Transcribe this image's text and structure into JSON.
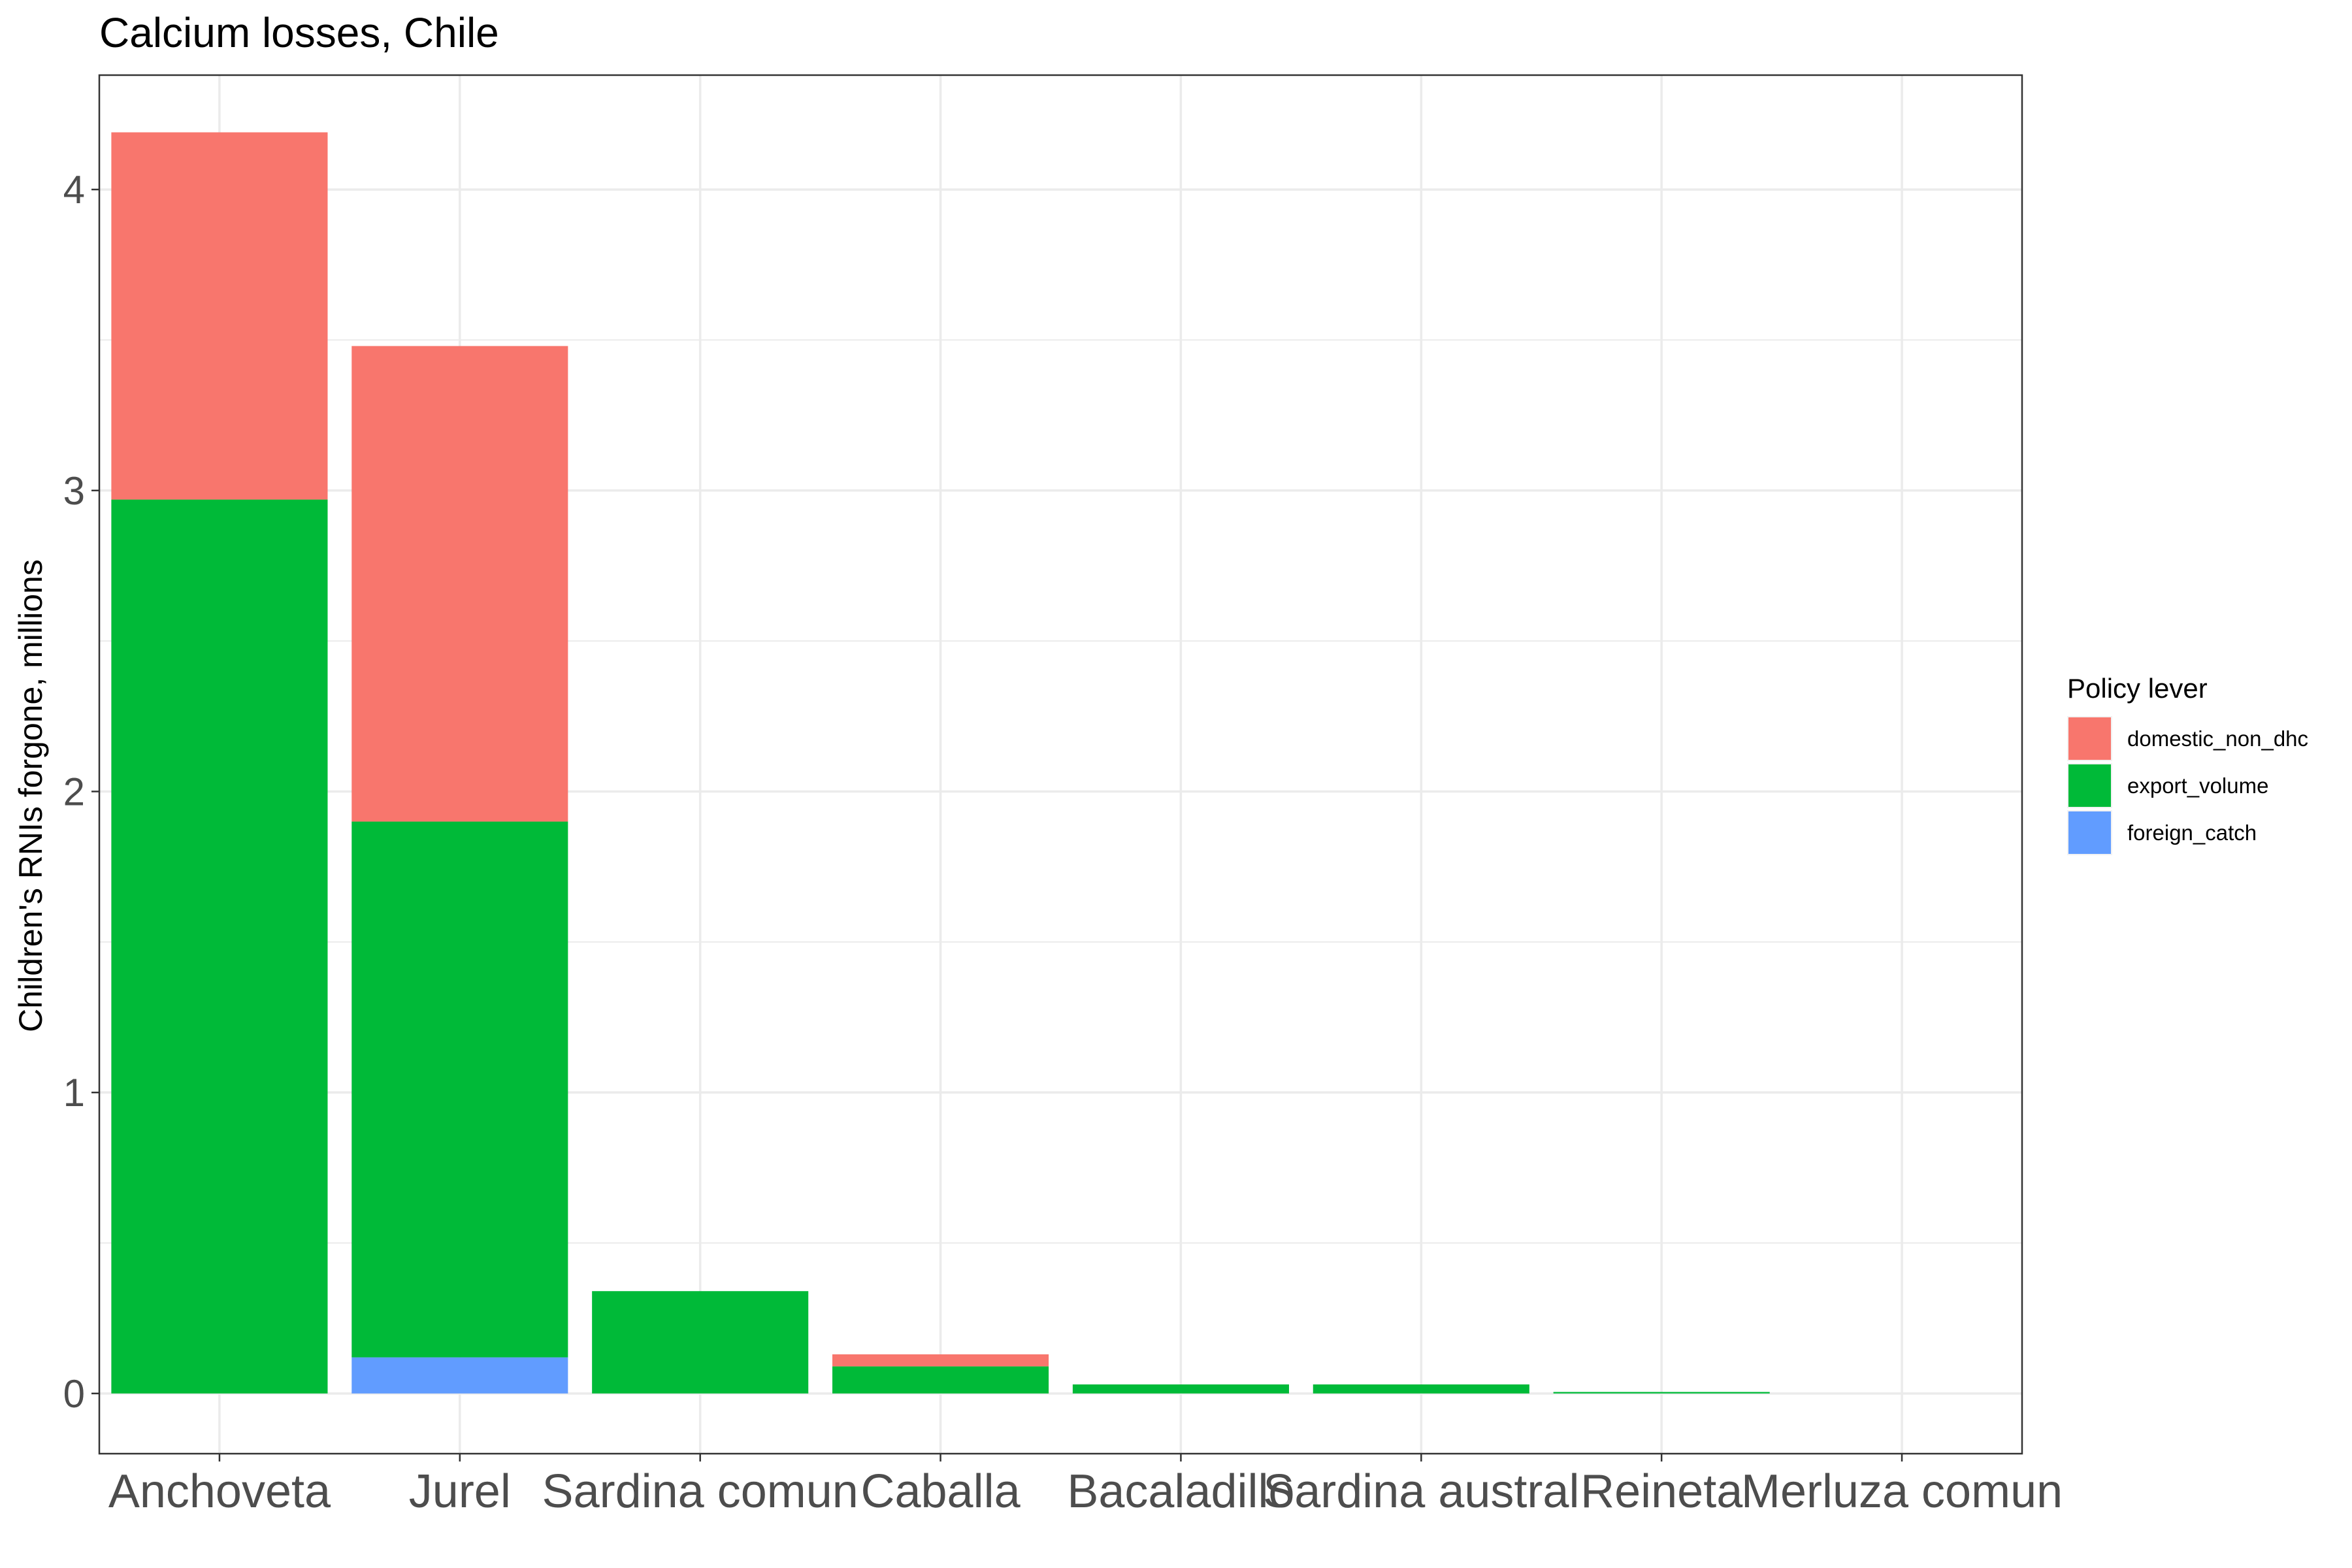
{
  "chart_data": {
    "type": "bar",
    "stacked": true,
    "title": "Calcium losses, Chile",
    "xlabel": "",
    "ylabel": "Children's RNIs forgone, millions",
    "categories": [
      "Anchoveta",
      "Jurel",
      "Sardina comun",
      "Caballa",
      "Bacaladillo",
      "Sardina austral",
      "Reineta",
      "Merluza comun"
    ],
    "series": [
      {
        "name": "foreign_catch",
        "color": "#619CFF",
        "values": [
          0,
          0.12,
          0,
          0,
          0,
          0,
          0,
          0
        ]
      },
      {
        "name": "export_volume",
        "color": "#00BA38",
        "values": [
          2.97,
          1.78,
          0.34,
          0.09,
          0.03,
          0.03,
          0.005,
          0
        ]
      },
      {
        "name": "domestic_non_dhc",
        "color": "#F8766D",
        "values": [
          1.22,
          1.58,
          0,
          0.04,
          0,
          0,
          0,
          0
        ]
      }
    ],
    "ylim": [
      -0.2,
      4.38
    ],
    "yticks": [
      0,
      1,
      2,
      3,
      4
    ],
    "ytick_labels": [
      "0",
      "1",
      "2",
      "3",
      "4"
    ],
    "grid": true,
    "legend": {
      "title": "Policy lever",
      "placement": "right",
      "entries": [
        "domestic_non_dhc",
        "export_volume",
        "foreign_catch"
      ]
    }
  }
}
